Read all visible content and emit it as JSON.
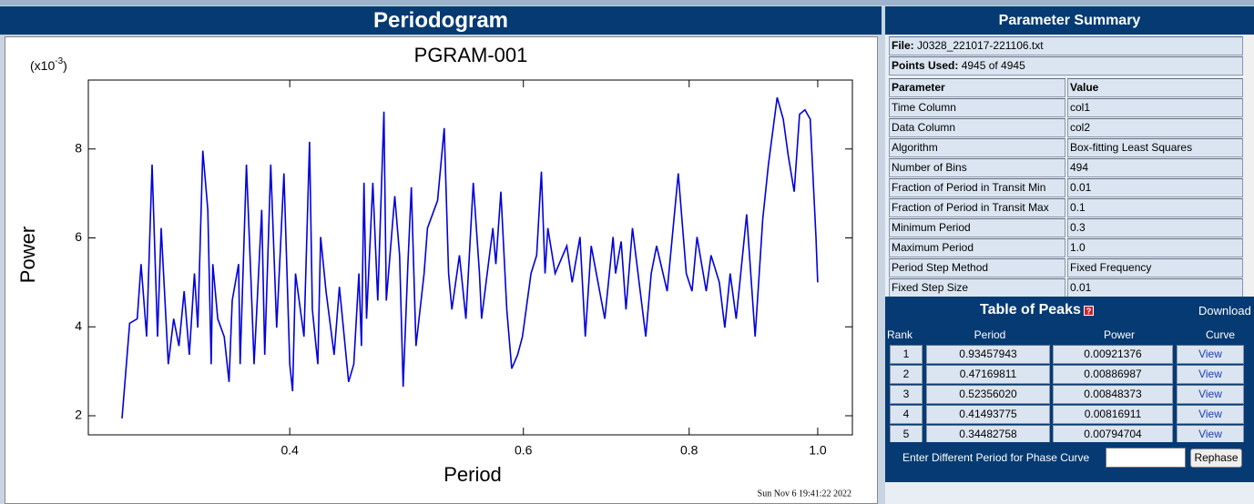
{
  "header": {
    "title": "Periodogram"
  },
  "chart_data": {
    "type": "line",
    "title": "PGRAM-001",
    "xlabel": "Period",
    "ylabel": "Power",
    "y_multiplier": {
      "prefix": "(x10",
      "exponent": "-3",
      "suffix": ")"
    },
    "timestamp": "Sun Nov  6 19:41:22 2022",
    "xscale": "log",
    "xlim": [
      0.282,
      1.062
    ],
    "ylim": [
      1.57,
      9.55
    ],
    "xticks": [
      0.4,
      0.6,
      0.8,
      {
        "value": 1,
        "label": "1.0"
      }
    ],
    "yticks": [
      2,
      4,
      6,
      8
    ],
    "color": "#0000dd",
    "x": [
      0.299,
      0.303,
      0.307,
      0.309,
      0.312,
      0.315,
      0.318,
      0.32,
      0.324,
      0.327,
      0.33,
      0.333,
      0.336,
      0.339,
      0.341,
      0.344,
      0.347,
      0.349,
      0.35,
      0.353,
      0.357,
      0.36,
      0.362,
      0.366,
      0.367,
      0.371,
      0.374,
      0.376,
      0.381,
      0.383,
      0.387,
      0.391,
      0.396,
      0.4,
      0.402,
      0.404,
      0.41,
      0.414,
      0.416,
      0.42,
      0.422,
      0.426,
      0.432,
      0.436,
      0.443,
      0.447,
      0.451,
      0.453,
      0.455,
      0.457,
      0.462,
      0.466,
      0.471,
      0.473,
      0.48,
      0.484,
      0.487,
      0.491,
      0.494,
      0.498,
      0.505,
      0.508,
      0.517,
      0.523,
      0.527,
      0.53,
      0.537,
      0.543,
      0.55,
      0.556,
      0.558,
      0.569,
      0.572,
      0.577,
      0.583,
      0.588,
      0.594,
      0.599,
      0.608,
      0.614,
      0.619,
      0.623,
      0.626,
      0.634,
      0.647,
      0.653,
      0.662,
      0.668,
      0.675,
      0.691,
      0.701,
      0.704,
      0.711,
      0.717,
      0.725,
      0.742,
      0.749,
      0.756,
      0.77,
      0.785,
      0.796,
      0.804,
      0.811,
      0.824,
      0.831,
      0.843,
      0.851,
      0.859,
      0.868,
      0.884,
      0.897,
      0.909,
      0.918,
      0.932,
      0.942,
      0.95,
      0.96,
      0.969,
      0.978,
      0.987,
      0.997,
      1.0
    ],
    "values": [
      1.94,
      4.08,
      4.18,
      5.41,
      3.78,
      7.65,
      3.78,
      6.22,
      3.16,
      4.18,
      3.57,
      4.8,
      3.37,
      5.2,
      3.98,
      7.96,
      6.63,
      3.16,
      5.41,
      4.18,
      3.78,
      2.76,
      4.59,
      5.41,
      3.16,
      7.65,
      5.0,
      3.16,
      6.63,
      3.37,
      7.65,
      3.98,
      7.45,
      3.16,
      2.55,
      5.2,
      3.78,
      8.16,
      4.39,
      3.16,
      6.02,
      4.8,
      3.37,
      4.9,
      2.76,
      3.16,
      5.2,
      3.57,
      7.24,
      4.18,
      7.24,
      4.59,
      8.84,
      4.59,
      6.94,
      5.61,
      2.65,
      5.41,
      7.14,
      3.57,
      5.2,
      6.22,
      6.84,
      8.47,
      5.2,
      4.39,
      5.61,
      4.18,
      7.24,
      5.2,
      4.18,
      6.22,
      5.41,
      7.04,
      4.39,
      3.06,
      3.37,
      3.78,
      5.2,
      5.61,
      7.49,
      5.2,
      6.22,
      5.2,
      5.82,
      5.0,
      6.02,
      3.78,
      5.82,
      4.18,
      6.02,
      5.2,
      5.92,
      4.39,
      6.22,
      3.78,
      5.2,
      5.82,
      4.8,
      7.45,
      5.2,
      4.8,
      6.02,
      4.8,
      5.61,
      5.0,
      3.98,
      5.2,
      4.18,
      6.53,
      3.78,
      6.43,
      7.65,
      9.16,
      8.67,
      7.86,
      7.04,
      8.78,
      8.88,
      8.67,
      6.02,
      5.0
    ]
  },
  "parameter_summary": {
    "title": "Parameter Summary",
    "file": {
      "label": "File:",
      "value": "J0328_221017-221106.txt"
    },
    "points": {
      "label": "Points Used:",
      "value": "4945 of 4945"
    },
    "columns": [
      "Parameter",
      "Value"
    ],
    "rows": [
      [
        "Time Column",
        "col1"
      ],
      [
        "Data Column",
        "col2"
      ],
      [
        "Algorithm",
        "Box-fitting Least Squares"
      ],
      [
        "Number of Bins",
        "494"
      ],
      [
        "Fraction of Period in Transit Min",
        "0.01"
      ],
      [
        "Fraction of Period in Transit Max",
        "0.1"
      ],
      [
        "Minimum Period",
        "0.3"
      ],
      [
        "Maximum Period",
        "1.0"
      ],
      [
        "Period Step Method",
        "Fixed Frequency"
      ],
      [
        "Fixed Step Size",
        "0.01"
      ]
    ]
  },
  "peaks": {
    "title": "Table of Peaks",
    "help": "?",
    "download": "Download",
    "columns": [
      "Rank",
      "Period",
      "Power",
      "Curve"
    ],
    "rows": [
      [
        "1",
        "0.93457943",
        "0.00921376",
        "View"
      ],
      [
        "2",
        "0.47169811",
        "0.00886987",
        "View"
      ],
      [
        "3",
        "0.52356020",
        "0.00848373",
        "View"
      ],
      [
        "4",
        "0.41493775",
        "0.00816911",
        "View"
      ],
      [
        "5",
        "0.34482758",
        "0.00794704",
        "View"
      ]
    ]
  },
  "phase": {
    "label": "Enter Different Period for Phase Curve",
    "button": "Rephase"
  }
}
